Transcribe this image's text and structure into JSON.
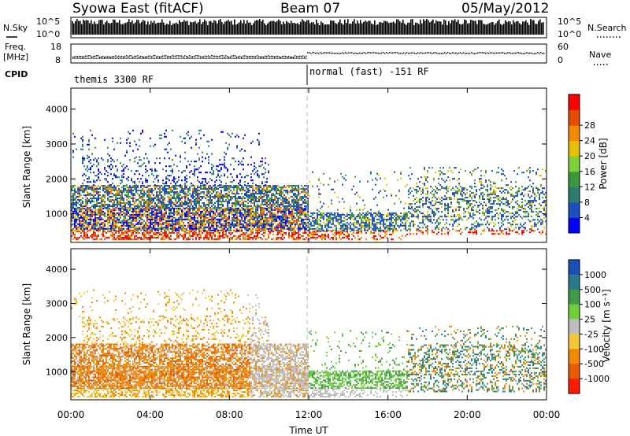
{
  "header": {
    "title": "Syowa East (fitACF)",
    "beam": "Beam 07",
    "date": "05/May/2012"
  },
  "summary": {
    "nsky": {
      "label": "N.Sky",
      "left_ticks": [
        "10^5",
        "10^0"
      ],
      "right_ticks": [
        "10^5",
        "10^0"
      ],
      "right_label": "N.Search"
    },
    "freq": {
      "label_top": "Freq.",
      "label_unit": "[MHz]",
      "left_ticks": [
        "18",
        "8"
      ],
      "right_ticks": [
        "60",
        "0"
      ],
      "right_label": "Nave"
    },
    "cpid": {
      "label": "CPID",
      "segments": [
        "themis 3300 RF",
        "normal (fast) -151 RF"
      ]
    }
  },
  "chart_data": [
    {
      "type": "heatmap",
      "name": "power",
      "ylabel": "Slant Range [km]",
      "ylim": [
        180,
        4600
      ],
      "yticks": [
        "1000",
        "2000",
        "3000",
        "4000"
      ],
      "xlim": [
        0,
        24
      ],
      "colorbar": {
        "label": "Power [dB]",
        "ticks": [
          "4",
          "8",
          "12",
          "16",
          "20",
          "24",
          "28"
        ],
        "colors": [
          "#0000ff",
          "#1b4fbf",
          "#2e7d6e",
          "#3a9a3a",
          "#7fcf3a",
          "#e6c000",
          "#f28a00",
          "#e84a00",
          "#ff0000"
        ]
      }
    },
    {
      "type": "heatmap",
      "name": "velocity",
      "ylabel": "Slant Range [km]",
      "ylim": [
        180,
        4600
      ],
      "yticks": [
        "1000",
        "2000",
        "3000",
        "4000"
      ],
      "xlim": [
        0,
        24
      ],
      "colorbar": {
        "label": "Velocity [m s⁻¹]",
        "ticks": [
          "1000",
          "500",
          "100",
          "25",
          "-25",
          "-100",
          "-500",
          "-1000"
        ],
        "colors": [
          "#1a4fb8",
          "#2a7a8a",
          "#3f9a4a",
          "#6fcf3a",
          "#bdbdbd",
          "#f2c83a",
          "#f28a00",
          "#e85a00",
          "#ff1a00"
        ]
      }
    }
  ],
  "xaxis": {
    "ticks": [
      "00:00",
      "04:00",
      "08:00",
      "12:00",
      "16:00",
      "20:00",
      "00:00"
    ],
    "label": "Time UT"
  }
}
